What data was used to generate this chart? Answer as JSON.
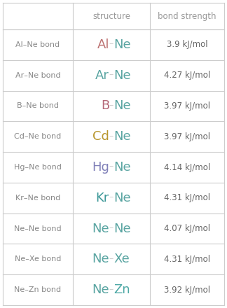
{
  "rows": [
    {
      "label": "Al–Ne bond",
      "elem1": "Al",
      "elem2": "Ne",
      "color1": "#bc7070",
      "color2": "#5aa5a2",
      "bond_strength": "3.9 kJ/mol"
    },
    {
      "label": "Ar–Ne bond",
      "elem1": "Ar",
      "elem2": "Ne",
      "color1": "#5aa5a2",
      "color2": "#5aa5a2",
      "bond_strength": "4.27 kJ/mol"
    },
    {
      "label": "B–Ne bond",
      "elem1": "B",
      "elem2": "Ne",
      "color1": "#b56878",
      "color2": "#5aa5a2",
      "bond_strength": "3.97 kJ/mol"
    },
    {
      "label": "Cd–Ne bond",
      "elem1": "Cd",
      "elem2": "Ne",
      "color1": "#b8962e",
      "color2": "#5aa5a2",
      "bond_strength": "3.97 kJ/mol"
    },
    {
      "label": "Hg–Ne bond",
      "elem1": "Hg",
      "elem2": "Ne",
      "color1": "#8080b8",
      "color2": "#5aa5a2",
      "bond_strength": "4.14 kJ/mol"
    },
    {
      "label": "Kr–Ne bond",
      "elem1": "Kr",
      "elem2": "Ne",
      "color1": "#3d9898",
      "color2": "#5aa5a2",
      "bond_strength": "4.31 kJ/mol"
    },
    {
      "label": "Ne–Ne bond",
      "elem1": "Ne",
      "elem2": "Ne",
      "color1": "#5aa5a2",
      "color2": "#5aa5a2",
      "bond_strength": "4.07 kJ/mol"
    },
    {
      "label": "Ne–Xe bond",
      "elem1": "Ne",
      "elem2": "Xe",
      "color1": "#5aa5a2",
      "color2": "#5aa5a2",
      "bond_strength": "4.31 kJ/mol"
    },
    {
      "label": "Ne–Zn bond",
      "elem1": "Ne",
      "elem2": "Zn",
      "color1": "#5aa5a2",
      "color2": "#4da8a5",
      "bond_strength": "3.92 kJ/mol"
    }
  ],
  "col_headers": [
    "structure",
    "bond strength"
  ],
  "header_color": "#999999",
  "label_color": "#888888",
  "value_color": "#666666",
  "bg_color": "#ffffff",
  "grid_color": "#cccccc",
  "header_fontsize": 8.5,
  "label_fontsize": 8,
  "elem_fontsize": 13,
  "value_fontsize": 8.5,
  "dash_color": "#cccccc",
  "dash_fontsize": 9
}
